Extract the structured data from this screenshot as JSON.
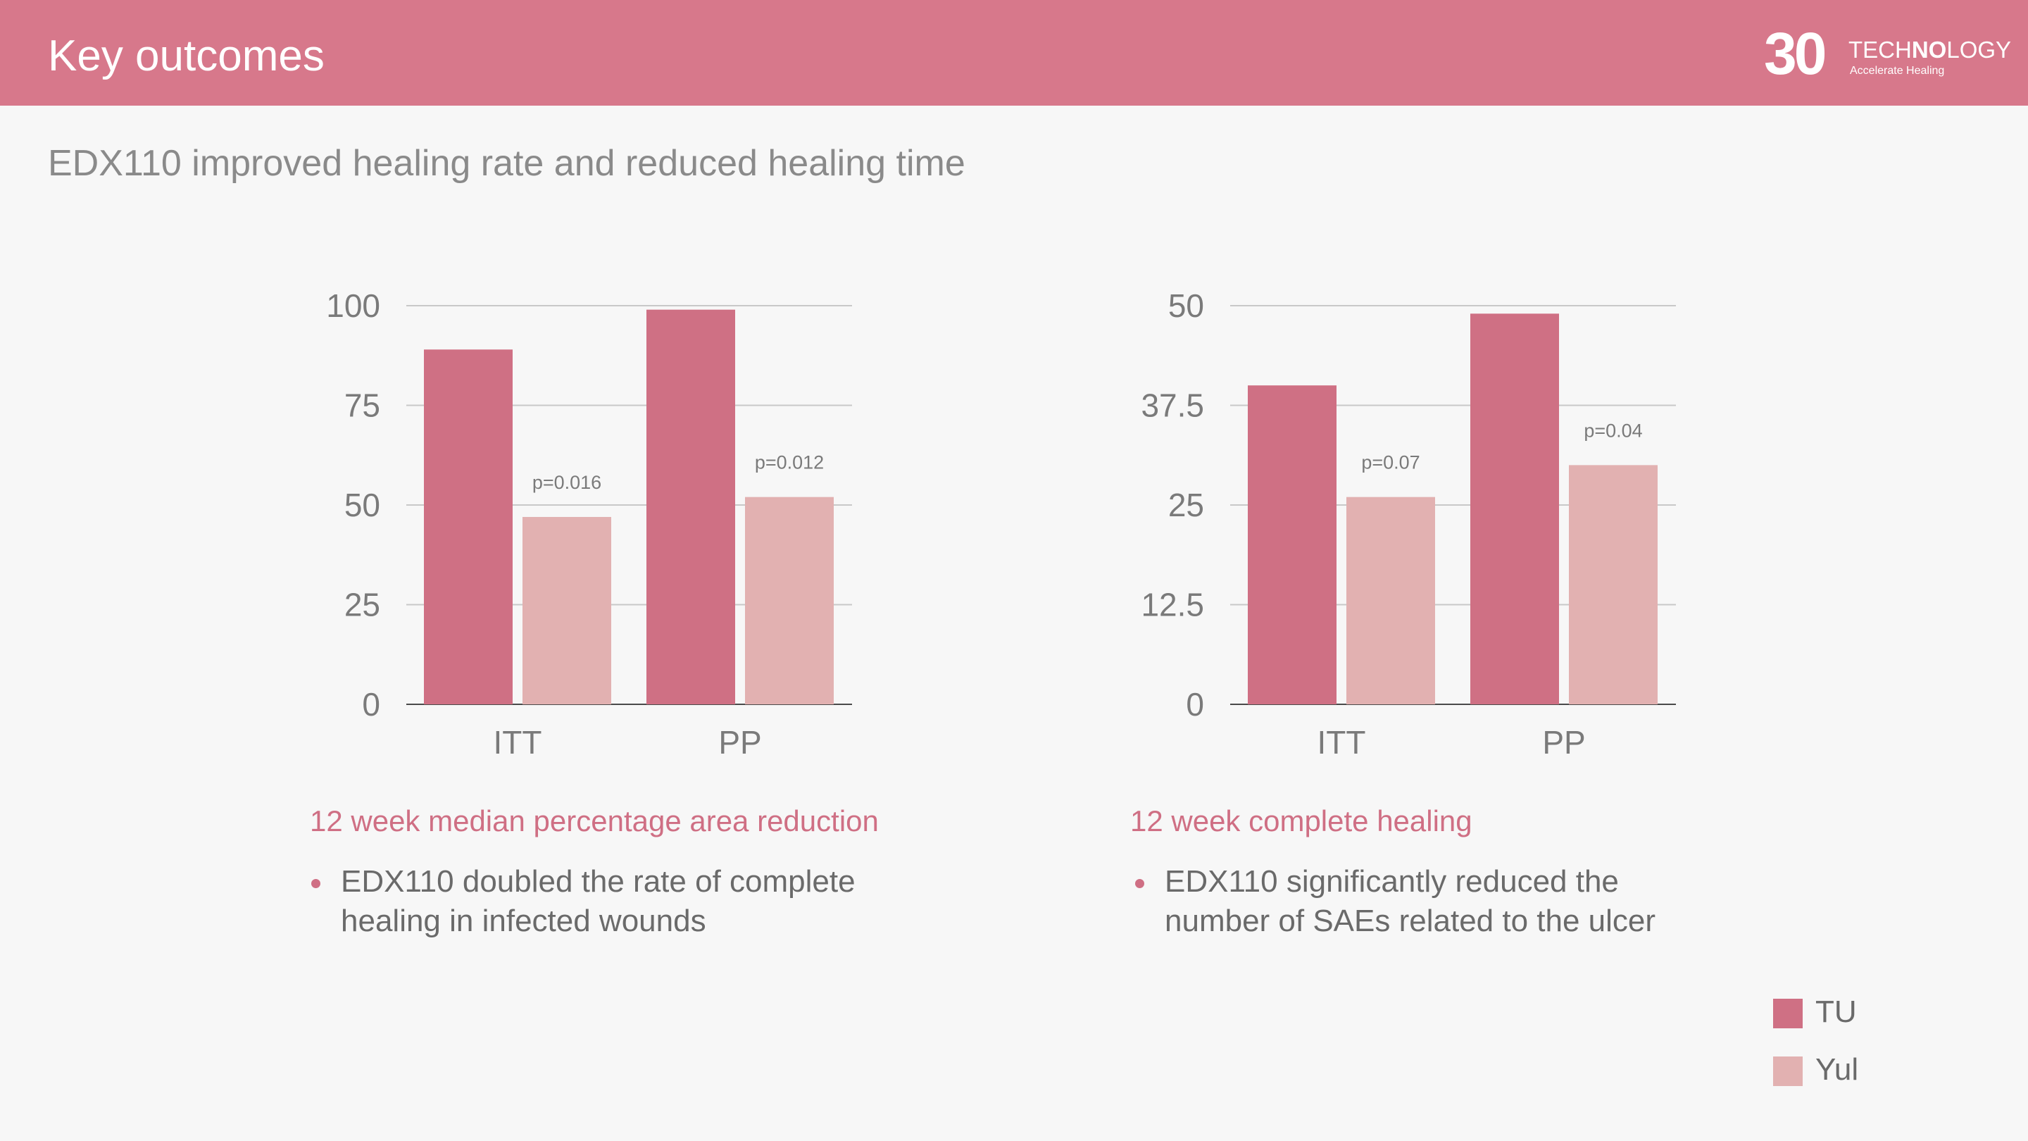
{
  "header": {
    "title": "Key outcomes"
  },
  "logo": {
    "number": "30",
    "wordmark_light_1": "TECH",
    "wordmark_bold": "NO",
    "wordmark_light_2": "LOGY",
    "tagline": "Accelerate Healing"
  },
  "subtitle": "EDX110 improved healing rate and reduced healing time",
  "colors": {
    "header": "#d7788b",
    "series_tu": "#cf7084",
    "series_yul": "#e2b1b1",
    "accent_text": "#cf6f84"
  },
  "chart_data": [
    {
      "type": "bar",
      "title": "12 week median percentage area reduction",
      "categories": [
        "ITT",
        "PP"
      ],
      "series": [
        {
          "name": "TU",
          "values": [
            89,
            99
          ]
        },
        {
          "name": "Yul",
          "values": [
            47,
            52
          ]
        }
      ],
      "ylim": [
        0,
        100
      ],
      "yticks": [
        "0",
        "25",
        "50",
        "75",
        "100"
      ],
      "ytick_values": [
        0,
        25,
        50,
        75,
        100
      ],
      "annotations": [
        "p=0.016",
        "p=0.012"
      ],
      "grid": true
    },
    {
      "type": "bar",
      "title": "12 week complete healing",
      "categories": [
        "ITT",
        "PP"
      ],
      "series": [
        {
          "name": "TU",
          "values": [
            40,
            49
          ]
        },
        {
          "name": "Yul",
          "values": [
            26,
            30
          ]
        }
      ],
      "ylim": [
        0,
        50
      ],
      "yticks": [
        "0",
        "12.5",
        "25",
        "37.5",
        "50"
      ],
      "ytick_values": [
        0,
        12.5,
        25,
        37.5,
        50
      ],
      "annotations": [
        "p=0.07",
        "p=0.04"
      ],
      "grid": true
    }
  ],
  "bullets": [
    {
      "lines": [
        "EDX110 doubled the rate of complete",
        "healing in infected wounds"
      ]
    },
    {
      "lines": [
        "EDX110 significantly reduced the",
        "number of SAEs related to the ulcer"
      ]
    }
  ],
  "legend": [
    {
      "label": "TU"
    },
    {
      "label": "Yul"
    }
  ]
}
